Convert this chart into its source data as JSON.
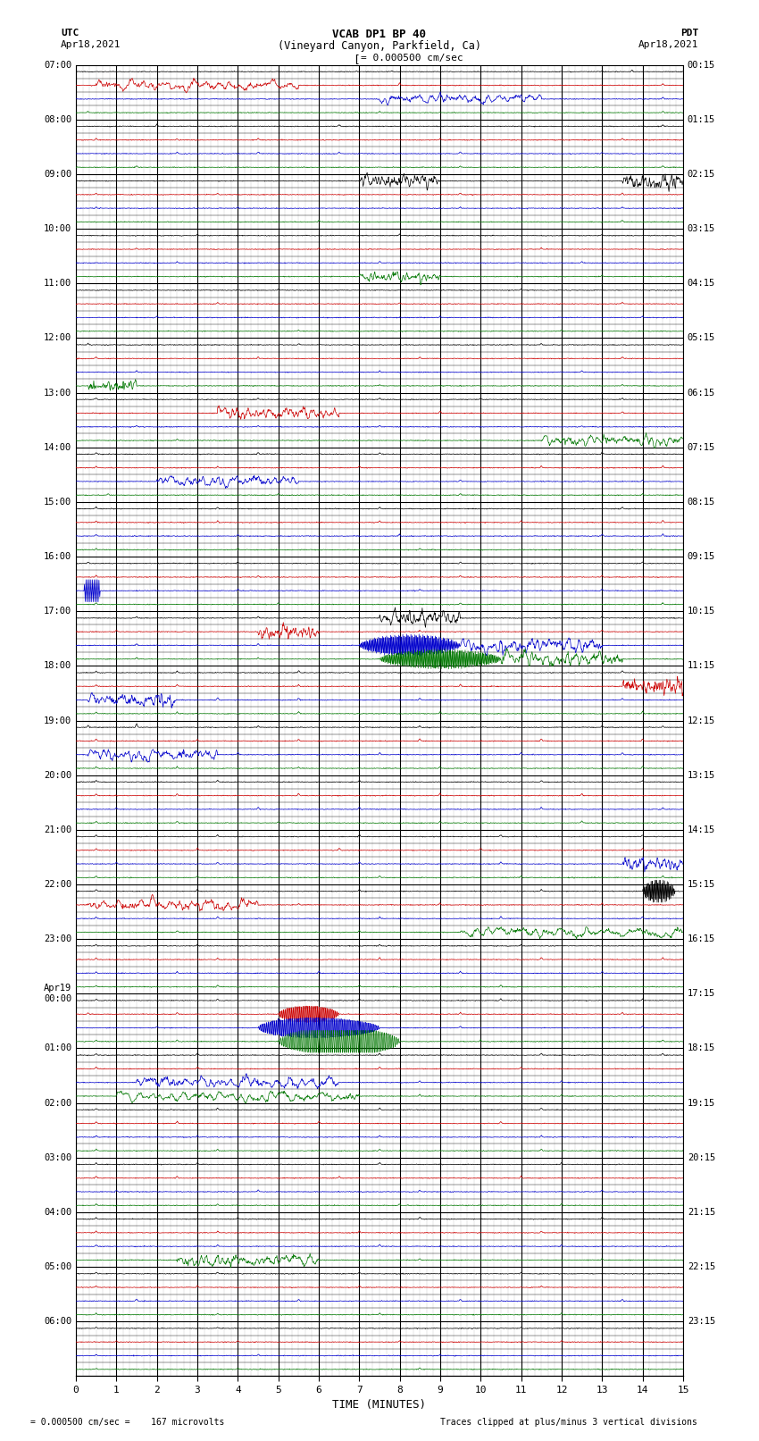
{
  "title_line1": "VCAB DP1 BP 40",
  "title_line2": "(Vineyard Canyon, Parkfield, Ca)",
  "scale_label": "= 0.000500 cm/sec",
  "utc_label": "UTC",
  "utc_date": "Apr18,2021",
  "pdt_label": "PDT",
  "pdt_date": "Apr18,2021",
  "xlabel": "TIME (MINUTES)",
  "footer_left": "= 0.000500 cm/sec =    167 microvolts",
  "footer_right": "Traces clipped at plus/minus 3 vertical divisions",
  "x_min": 0,
  "x_max": 15,
  "x_ticks": [
    0,
    1,
    2,
    3,
    4,
    5,
    6,
    7,
    8,
    9,
    10,
    11,
    12,
    13,
    14,
    15
  ],
  "num_hours": 24,
  "colors": [
    "#000000",
    "#cc0000",
    "#0000cc",
    "#007700"
  ],
  "left_times": [
    "07:00",
    "08:00",
    "09:00",
    "10:00",
    "11:00",
    "12:00",
    "13:00",
    "14:00",
    "15:00",
    "16:00",
    "17:00",
    "18:00",
    "19:00",
    "20:00",
    "21:00",
    "22:00",
    "23:00",
    "Apr19\n00:00",
    "01:00",
    "02:00",
    "03:00",
    "04:00",
    "05:00",
    "06:00"
  ],
  "right_times": [
    "00:15",
    "01:15",
    "02:15",
    "03:15",
    "04:15",
    "05:15",
    "06:15",
    "07:15",
    "08:15",
    "09:15",
    "10:15",
    "11:15",
    "12:15",
    "13:15",
    "14:15",
    "15:15",
    "16:15",
    "17:15",
    "18:15",
    "19:15",
    "20:15",
    "21:15",
    "22:15",
    "23:15"
  ],
  "background_color": "#ffffff",
  "grid_color": "#000000",
  "seed": 12345
}
